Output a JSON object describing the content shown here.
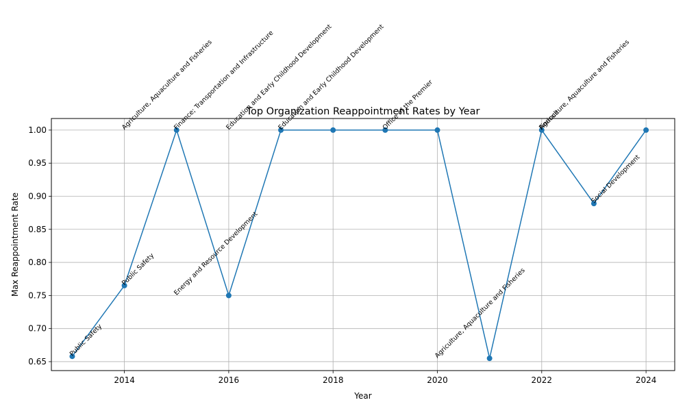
{
  "chart_data": {
    "type": "line",
    "title": "Top Organization Reappointment Rates by Year",
    "xlabel": "Year",
    "ylabel": "Max Reappointment Rate",
    "xlim": [
      2012.6,
      2024.55
    ],
    "ylim": [
      0.6365,
      1.0175
    ],
    "xticks": [
      2014,
      2016,
      2018,
      2020,
      2022,
      2024
    ],
    "yticks": [
      0.65,
      0.7,
      0.75,
      0.8,
      0.85,
      0.9,
      0.95,
      1.0
    ],
    "grid": true,
    "line_color": "#1f77b4",
    "x": [
      2013,
      2014,
      2015,
      2016,
      2017,
      2018,
      2019,
      2020,
      2021,
      2022,
      2023,
      2024
    ],
    "y": [
      0.658,
      0.765,
      1.0,
      0.75,
      1.0,
      1.0,
      1.0,
      1.0,
      0.655,
      1.0,
      0.889,
      1.0
    ],
    "annotations": [
      {
        "x": 2013,
        "y": 0.658,
        "text": "Public Safety"
      },
      {
        "x": 2014,
        "y": 0.765,
        "text": "Public Safety"
      },
      {
        "x": 2014,
        "y": 1.0,
        "text": "Agriculture, Aquaculture and Fisheries"
      },
      {
        "x": 2015,
        "y": 0.75,
        "text": "Energy and Resource Development"
      },
      {
        "x": 2015,
        "y": 1.0,
        "text": "Finance; Transportation and Infrastructure"
      },
      {
        "x": 2016,
        "y": 1.0,
        "text": "Education and Early Childhood Development"
      },
      {
        "x": 2017,
        "y": 1.0,
        "text": "Education and Early Childhood Development"
      },
      {
        "x": 2019,
        "y": 1.0,
        "text": "Office of the Premier"
      },
      {
        "x": 2020,
        "y": 0.655,
        "text": "Agriculture, Aquaculture and Fisheries"
      },
      {
        "x": 2022,
        "y": 1.0,
        "text": "Finance"
      },
      {
        "x": 2022,
        "y": 1.0,
        "text": "Agriculture, Aquaculture and Fisheries"
      },
      {
        "x": 2023,
        "y": 0.889,
        "text": "Social Development"
      }
    ]
  }
}
